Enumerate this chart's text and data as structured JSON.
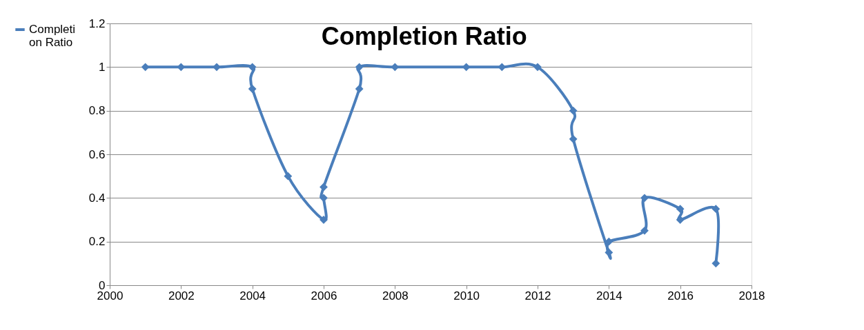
{
  "chart_data": {
    "type": "line",
    "title": "Completion Ratio",
    "xlim": [
      2000,
      2018
    ],
    "xticks": [
      2000,
      2002,
      2004,
      2006,
      2008,
      2010,
      2012,
      2014,
      2016,
      2018
    ],
    "ylim": [
      0,
      1.2
    ],
    "yticks": [
      0,
      0.2,
      0.4,
      0.6,
      0.8,
      1,
      1.2
    ],
    "grid": "y",
    "legend": "left",
    "marker": "diamond",
    "line_style": "solid",
    "series": [
      {
        "name": "Completion Ratio",
        "color": "#4a7ebb",
        "x": [
          2001,
          2002,
          2003,
          2004,
          2004,
          2005,
          2006,
          2006,
          2006,
          2007,
          2007,
          2008,
          2010,
          2011,
          2012,
          2013,
          2013,
          2014,
          2014,
          2015,
          2015,
          2016,
          2016,
          2017,
          2017
        ],
        "values": [
          1,
          1,
          1,
          1,
          0.9,
          0.5,
          0.3,
          0.4,
          0.45,
          0.9,
          1,
          1,
          1,
          1,
          1,
          0.8,
          0.67,
          0.15,
          0.2,
          0.25,
          0.4,
          0.35,
          0.3,
          0.35,
          0.1
        ]
      }
    ]
  }
}
